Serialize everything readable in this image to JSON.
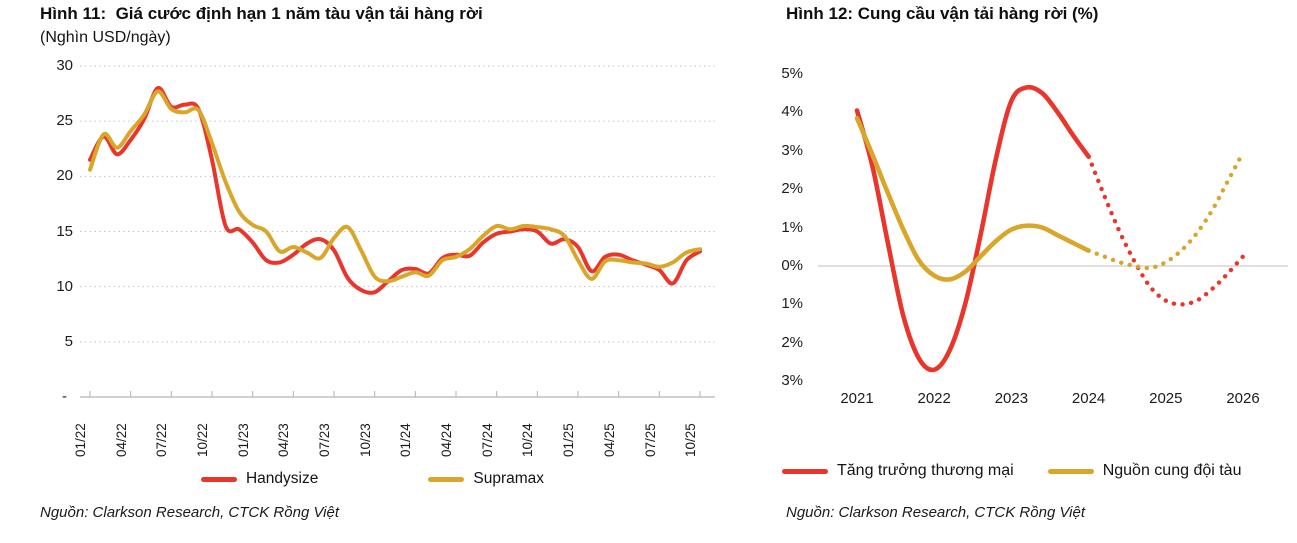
{
  "colors": {
    "red": "#e8362d",
    "gold": "#d8a62a",
    "grid": "#c6c6c6",
    "axis": "#b3b3b3",
    "zero_line": "#d6d6d6"
  },
  "fig11": {
    "title": "Hình 11:  Giá cước định hạn 1 năm tàu vận tải hàng rời",
    "subtitle": "(Nghìn USD/ngày)",
    "source": "Nguồn: Clarkson Research, CTCK Rồng Việt",
    "legend": [
      {
        "label": "Handysize",
        "color": "red"
      },
      {
        "label": "Supramax",
        "color": "gold"
      }
    ],
    "chart_data": {
      "type": "line",
      "title": "Giá cước định hạn 1 năm tàu vận tải hàng rời (Nghìn USD/ngày)",
      "x_start": "01/22",
      "x_end": "10/25",
      "x_step": "month",
      "x_tick_labels": [
        "01/22",
        "04/22",
        "07/22",
        "10/22",
        "01/23",
        "04/23",
        "07/23",
        "10/23",
        "01/24",
        "04/24",
        "07/24",
        "10/24",
        "01/25",
        "04/25",
        "07/25",
        "10/25"
      ],
      "y_tick_labels": [
        "30",
        "25",
        "20",
        "15",
        "10",
        "5",
        "-"
      ],
      "y_tick_values": [
        30,
        25,
        20,
        15,
        10,
        5,
        0
      ],
      "ylim": [
        0,
        30
      ],
      "grid": "dotted-horizontal",
      "legend_position": "bottom",
      "series": [
        {
          "name": "Handysize",
          "color": "#e8362d",
          "values": [
            21.5,
            23.6,
            22.0,
            23.3,
            25.2,
            28.0,
            26.3,
            26.5,
            26.1,
            21.5,
            15.5,
            15.2,
            14.0,
            12.4,
            12.2,
            12.9,
            13.9,
            14.3,
            13.3,
            10.8,
            9.7,
            9.5,
            10.5,
            11.5,
            11.6,
            11.2,
            12.6,
            12.9,
            12.8,
            14.0,
            14.8,
            15.0,
            15.2,
            15.0,
            13.9,
            14.3,
            13.6,
            11.4,
            12.7,
            12.9,
            12.4,
            12.0,
            11.5,
            10.3,
            12.4,
            13.2
          ]
        },
        {
          "name": "Supramax",
          "color": "#d8a62a",
          "values": [
            20.6,
            23.8,
            22.6,
            24.1,
            25.6,
            27.7,
            26.1,
            25.8,
            26.0,
            23.0,
            19.5,
            16.8,
            15.6,
            15.0,
            13.2,
            13.6,
            13.1,
            12.6,
            14.4,
            15.4,
            13.3,
            10.9,
            10.5,
            10.9,
            11.3,
            11.0,
            12.4,
            12.7,
            13.4,
            14.6,
            15.5,
            15.2,
            15.5,
            15.4,
            15.2,
            14.6,
            12.4,
            10.7,
            12.3,
            12.4,
            12.2,
            12.1,
            11.8,
            12.2,
            13.1,
            13.4
          ]
        }
      ]
    }
  },
  "fig12": {
    "title": "Hình 12: Cung cầu vận tải hàng rời (%)",
    "source": "Nguồn: Clarkson Research, CTCK Rồng Việt",
    "legend": [
      {
        "label": "Tăng trưởng thương mại",
        "color": "red"
      },
      {
        "label": "Nguồn cung đội tàu",
        "color": "gold"
      }
    ],
    "chart_data": {
      "type": "line",
      "title": "Cung cầu vận tải hàng rời (%)",
      "x_tick_labels": [
        "2021",
        "2022",
        "2023",
        "2024",
        "2025",
        "2026"
      ],
      "y_tick_labels": [
        "5%",
        "4%",
        "3%",
        "2%",
        "1%",
        "0%",
        "1%",
        "2%",
        "3%"
      ],
      "y_tick_values": [
        5,
        4,
        3,
        2,
        1,
        0,
        -1,
        -2,
        -3
      ],
      "ylim": [
        -3,
        5
      ],
      "grid": "zero-line-only",
      "legend_position": "bottom",
      "note": "dotted segments after 2024 are forecast",
      "series": [
        {
          "name": "Tăng trưởng thương mại",
          "color": "#e8362d",
          "solid": {
            "x": [
              2021.0,
              2021.2,
              2021.4,
              2021.6,
              2021.8,
              2022.0,
              2022.2,
              2022.4,
              2022.6,
              2022.8,
              2023.0,
              2023.2,
              2023.4,
              2023.6,
              2023.8,
              2024.0
            ],
            "y": [
              4.05,
              2.6,
              0.6,
              -1.3,
              -2.4,
              -2.7,
              -2.2,
              -1.0,
              0.8,
              2.8,
              4.3,
              4.65,
              4.5,
              4.0,
              3.4,
              2.85
            ]
          },
          "dotted": {
            "x": [
              2024.0,
              2024.2,
              2024.4,
              2024.6,
              2024.8,
              2025.0,
              2025.2,
              2025.4,
              2025.6,
              2025.8,
              2026.0
            ],
            "y": [
              2.85,
              1.85,
              0.9,
              0.1,
              -0.55,
              -0.9,
              -1.0,
              -0.9,
              -0.6,
              -0.2,
              0.25
            ]
          }
        },
        {
          "name": "Nguồn cung đội tàu",
          "color": "#d8a62a",
          "solid": {
            "x": [
              2021.0,
              2021.2,
              2021.4,
              2021.6,
              2021.8,
              2022.0,
              2022.2,
              2022.4,
              2022.6,
              2022.8,
              2023.0,
              2023.2,
              2023.4,
              2023.6,
              2023.8,
              2024.0
            ],
            "y": [
              3.85,
              2.9,
              1.9,
              0.95,
              0.15,
              -0.25,
              -0.35,
              -0.15,
              0.25,
              0.65,
              0.95,
              1.05,
              1.0,
              0.8,
              0.6,
              0.4
            ]
          },
          "dotted": {
            "x": [
              2024.0,
              2024.2,
              2024.4,
              2024.6,
              2024.8,
              2025.0,
              2025.2,
              2025.4,
              2025.6,
              2025.8,
              2026.0
            ],
            "y": [
              0.4,
              0.25,
              0.1,
              0.0,
              -0.05,
              0.1,
              0.4,
              0.85,
              1.45,
              2.2,
              2.95
            ]
          }
        }
      ]
    }
  }
}
